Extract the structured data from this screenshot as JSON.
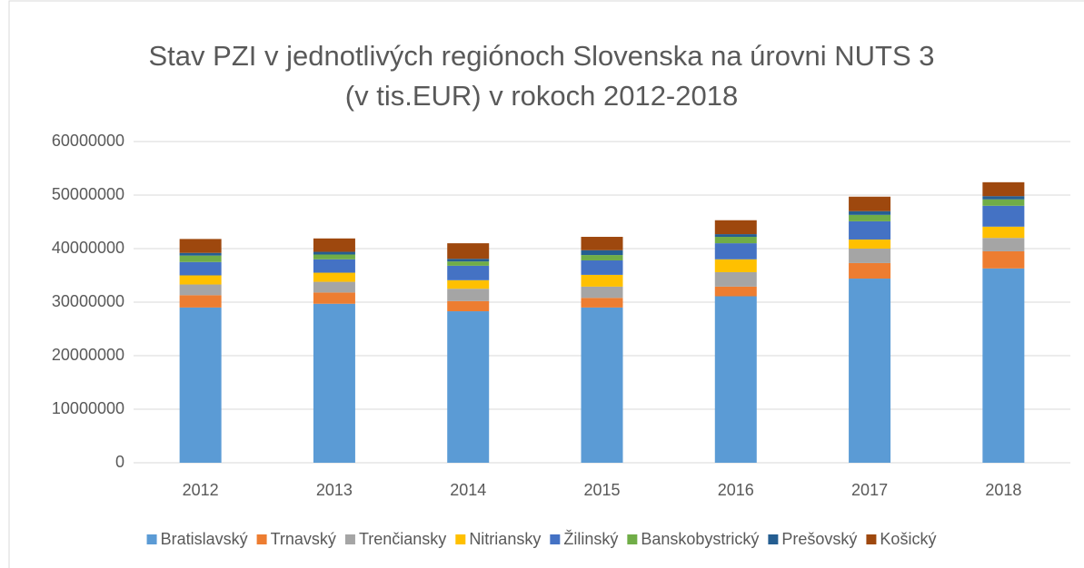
{
  "chart_data": {
    "type": "stacked_bar",
    "title": "Stav PZI v jednotlivých regiónoch Slovenska na úrovni NUTS 3\n(v tis.EUR) v rokoch 2012-2018",
    "categories": [
      "2012",
      "2013",
      "2014",
      "2015",
      "2016",
      "2017",
      "2018"
    ],
    "series": [
      {
        "name": "Bratislavský",
        "color": "#5b9bd5",
        "values": [
          29000000,
          29700000,
          28300000,
          29000000,
          31100000,
          34400000,
          36300000
        ]
      },
      {
        "name": "Trnavský",
        "color": "#ed7d31",
        "values": [
          2300000,
          2100000,
          1900000,
          1800000,
          1800000,
          2900000,
          3200000
        ]
      },
      {
        "name": "Trenčiansky",
        "color": "#a5a5a5",
        "values": [
          2000000,
          2000000,
          2300000,
          2100000,
          2700000,
          2700000,
          2500000
        ]
      },
      {
        "name": "Nitriansky",
        "color": "#ffc000",
        "values": [
          1700000,
          1700000,
          1600000,
          2200000,
          2400000,
          1700000,
          2100000
        ]
      },
      {
        "name": "Žilinský",
        "color": "#4472c4",
        "values": [
          2500000,
          2500000,
          2700000,
          2700000,
          3000000,
          3400000,
          3900000
        ]
      },
      {
        "name": "Banskobystrický",
        "color": "#70ad47",
        "values": [
          1200000,
          900000,
          800000,
          1000000,
          1200000,
          1200000,
          1200000
        ]
      },
      {
        "name": "Prešovský",
        "color": "#255e91",
        "values": [
          500000,
          500000,
          500000,
          900000,
          500000,
          700000,
          600000
        ]
      },
      {
        "name": "Košický",
        "color": "#9e480e",
        "values": [
          2600000,
          2500000,
          2900000,
          2500000,
          2600000,
          2700000,
          2600000
        ]
      }
    ],
    "ylim": [
      0,
      60000000
    ],
    "yticks": [
      0,
      10000000,
      20000000,
      30000000,
      40000000,
      50000000,
      60000000
    ],
    "grid": true,
    "legend": "bottom"
  }
}
